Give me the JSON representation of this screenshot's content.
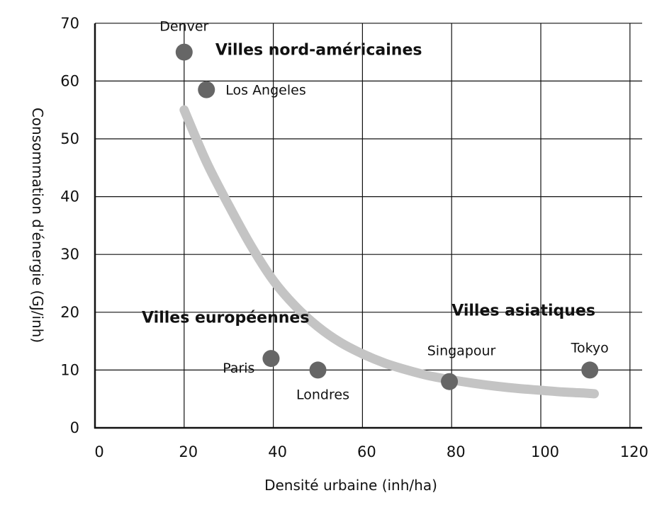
{
  "chart_data": {
    "type": "scatter",
    "title": "",
    "xlabel": "Densité urbaine (inh/ha)",
    "ylabel": "Consommation d'énergie (GJ/inh)",
    "xlim": [
      0,
      120
    ],
    "ylim": [
      0,
      70
    ],
    "xticks": [
      0,
      20,
      40,
      60,
      80,
      100,
      120
    ],
    "yticks": [
      0,
      10,
      20,
      30,
      40,
      50,
      60,
      70
    ],
    "grid": true,
    "colors": {
      "points": "#666666",
      "trend": "#c4c4c4",
      "grid": "#111111"
    },
    "points": [
      {
        "label": "Denver",
        "x": 20,
        "y": 65
      },
      {
        "label": "Los Angeles",
        "x": 25,
        "y": 58.5
      },
      {
        "label": "Paris",
        "x": 39.5,
        "y": 12
      },
      {
        "label": "Londres",
        "x": 50,
        "y": 10
      },
      {
        "label": "Singapour",
        "x": 79.5,
        "y": 8
      },
      {
        "label": "Tokyo",
        "x": 111,
        "y": 10
      }
    ],
    "trend_line": {
      "x": [
        20,
        25,
        30,
        35,
        40,
        45,
        50,
        55,
        60,
        65,
        70,
        75,
        80,
        85,
        90,
        95,
        100,
        105,
        110,
        112
      ],
      "y": [
        55,
        46,
        38.5,
        31.5,
        25.5,
        21,
        17.5,
        14.8,
        12.8,
        11.2,
        10,
        9,
        8.3,
        7.7,
        7.2,
        6.8,
        6.5,
        6.2,
        6,
        5.9
      ]
    },
    "annotations": [
      {
        "text": "Villes nord-américaines",
        "x": 27,
        "y": 64.5
      },
      {
        "text": "Villes européennes",
        "x": 10.5,
        "y": 18.2
      },
      {
        "text": "Villes asiatiques",
        "x": 80,
        "y": 19.4
      }
    ]
  }
}
